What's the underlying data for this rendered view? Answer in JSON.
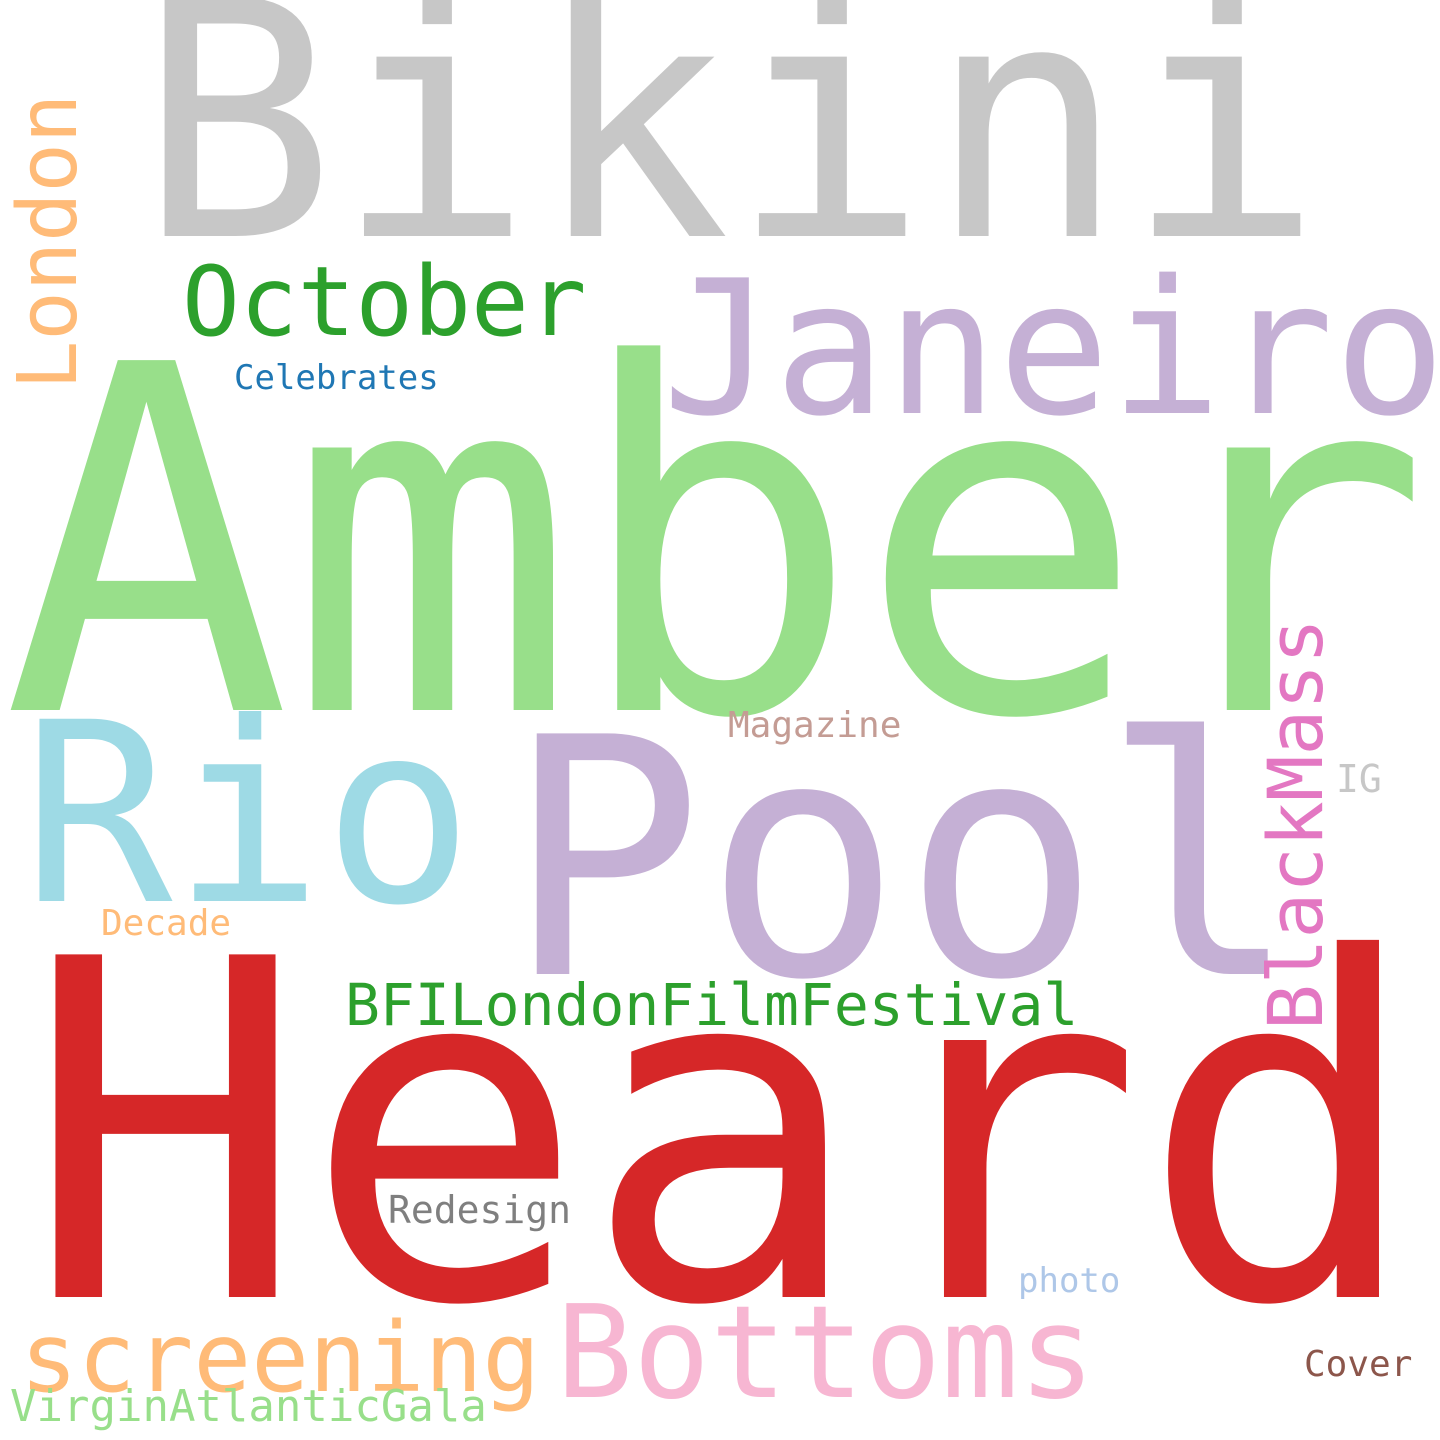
{
  "words": {
    "bikini": {
      "text": "Bikini",
      "color": "#c7c7c7"
    },
    "amber": {
      "text": "Amber",
      "color": "#98df8a"
    },
    "heard": {
      "text": "Heard",
      "color": "#d62728"
    },
    "pool": {
      "text": "Pool",
      "color": "#c5b0d5"
    },
    "janeiro": {
      "text": "Janeiro",
      "color": "#c5b0d5"
    },
    "rio": {
      "text": "Rio",
      "color": "#9edae5"
    },
    "october": {
      "text": "October",
      "color": "#2ca02c"
    },
    "london": {
      "text": "London",
      "color": "#ffbb78"
    },
    "celebrates": {
      "text": "Celebrates",
      "color": "#1f77b4"
    },
    "blackmass": {
      "text": "BlackMass",
      "color": "#e377c2"
    },
    "magazine": {
      "text": "Magazine",
      "color": "#c49c94"
    },
    "ig": {
      "text": "IG",
      "color": "#c7c7c7"
    },
    "decade": {
      "text": "Decade",
      "color": "#ffbb78"
    },
    "bfi": {
      "text": "BFILondonFilmFestival",
      "color": "#2ca02c"
    },
    "redesign": {
      "text": "Redesign",
      "color": "#7f7f7f"
    },
    "photo": {
      "text": "photo",
      "color": "#aec7e8"
    },
    "bottoms": {
      "text": "Bottoms",
      "color": "#f7b6d2"
    },
    "screening": {
      "text": "screening",
      "color": "#ffbb78"
    },
    "cover": {
      "text": "Cover",
      "color": "#8c564b"
    },
    "virgin": {
      "text": "VirginAtlanticGala",
      "color": "#98df8a"
    }
  }
}
